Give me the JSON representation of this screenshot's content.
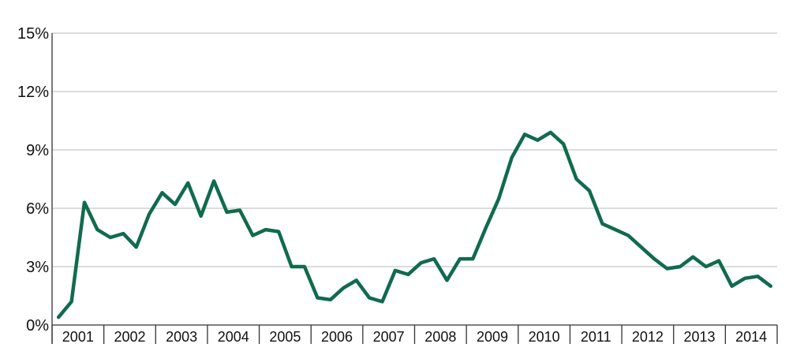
{
  "chart_data": {
    "type": "line",
    "title": "",
    "xlabel": "",
    "ylabel": "",
    "years": [
      "2001",
      "2002",
      "2003",
      "2004",
      "2005",
      "2006",
      "2007",
      "2008",
      "2009",
      "2010",
      "2011",
      "2012",
      "2013",
      "2014"
    ],
    "y_ticks": [
      "0%",
      "3%",
      "6%",
      "9%",
      "12%",
      "15%"
    ],
    "ylim": [
      0,
      15
    ],
    "grid": true,
    "legend": "none",
    "line_color": "#106b4d",
    "series": [
      {
        "frequency": "quarterly",
        "values": [
          0.4,
          1.2,
          6.3,
          4.9,
          4.5,
          4.7,
          4.0,
          5.7,
          6.8,
          6.2,
          7.3,
          5.6,
          7.4,
          5.8,
          5.9,
          4.6,
          4.9,
          4.8,
          3.0,
          3.0,
          1.4,
          1.3,
          1.9,
          2.3,
          1.4,
          1.2,
          2.8,
          2.6,
          3.2,
          3.4,
          2.3,
          3.4,
          3.4,
          5.0,
          6.5,
          8.6,
          9.8,
          9.5,
          9.9,
          9.3,
          7.5,
          6.9,
          5.2,
          4.9,
          4.6,
          4.0,
          3.4,
          2.9,
          3.0,
          3.5,
          3.0,
          3.3,
          2.0,
          2.4,
          2.5,
          2.0
        ]
      }
    ]
  }
}
